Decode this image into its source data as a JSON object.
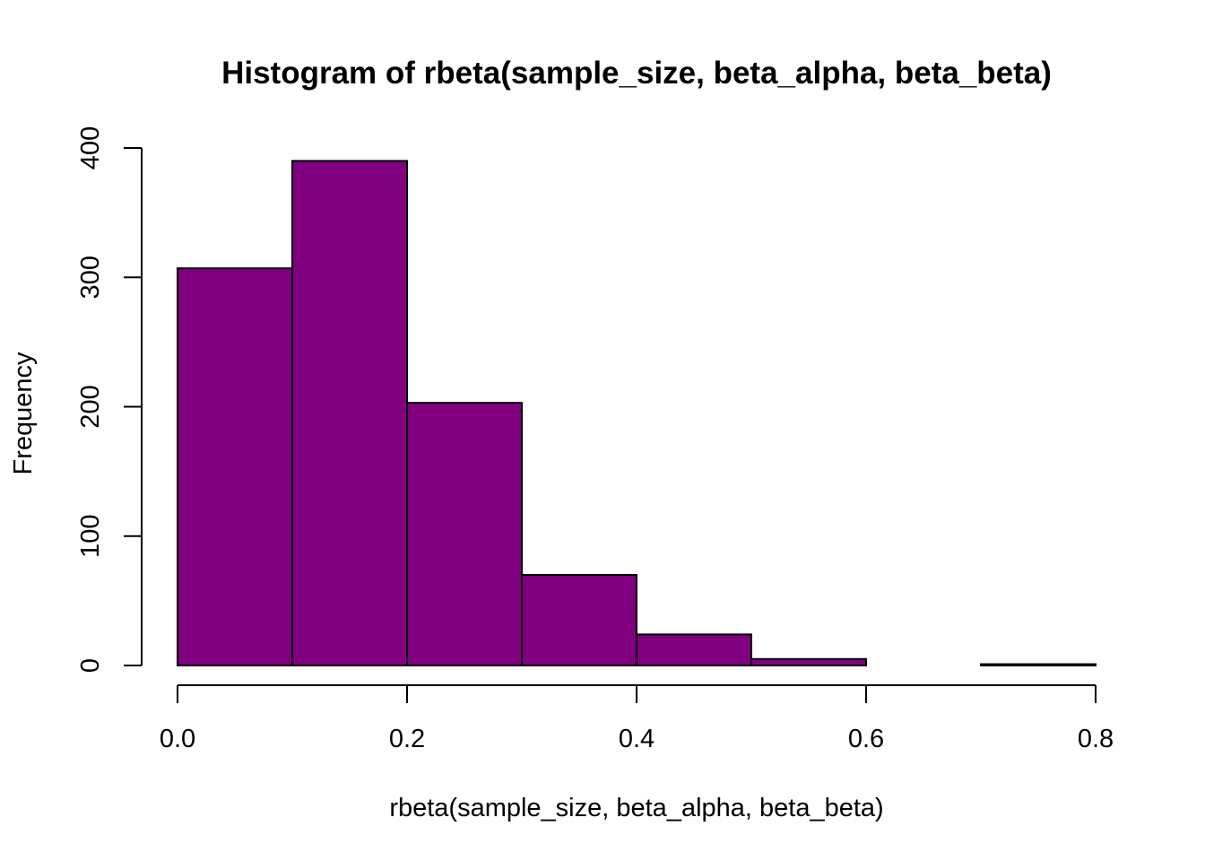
{
  "chart_data": {
    "type": "bar",
    "title": "Histogram of rbeta(sample_size, beta_alpha, beta_beta)",
    "xlabel": "rbeta(sample_size, beta_alpha, beta_beta)",
    "ylabel": "Frequency",
    "bin_edges": [
      0.0,
      0.1,
      0.2,
      0.3,
      0.4,
      0.5,
      0.6,
      0.7,
      0.8
    ],
    "values": [
      307,
      390,
      203,
      70,
      24,
      5,
      0,
      1
    ],
    "xlim": [
      0.0,
      0.8
    ],
    "ylim": [
      0,
      400
    ],
    "x_ticks": [
      "0.0",
      "0.2",
      "0.4",
      "0.6",
      "0.8"
    ],
    "y_ticks": [
      "0",
      "100",
      "200",
      "300",
      "400"
    ],
    "grid": false,
    "bar_color": "#800080",
    "edge_color": "#000000"
  }
}
